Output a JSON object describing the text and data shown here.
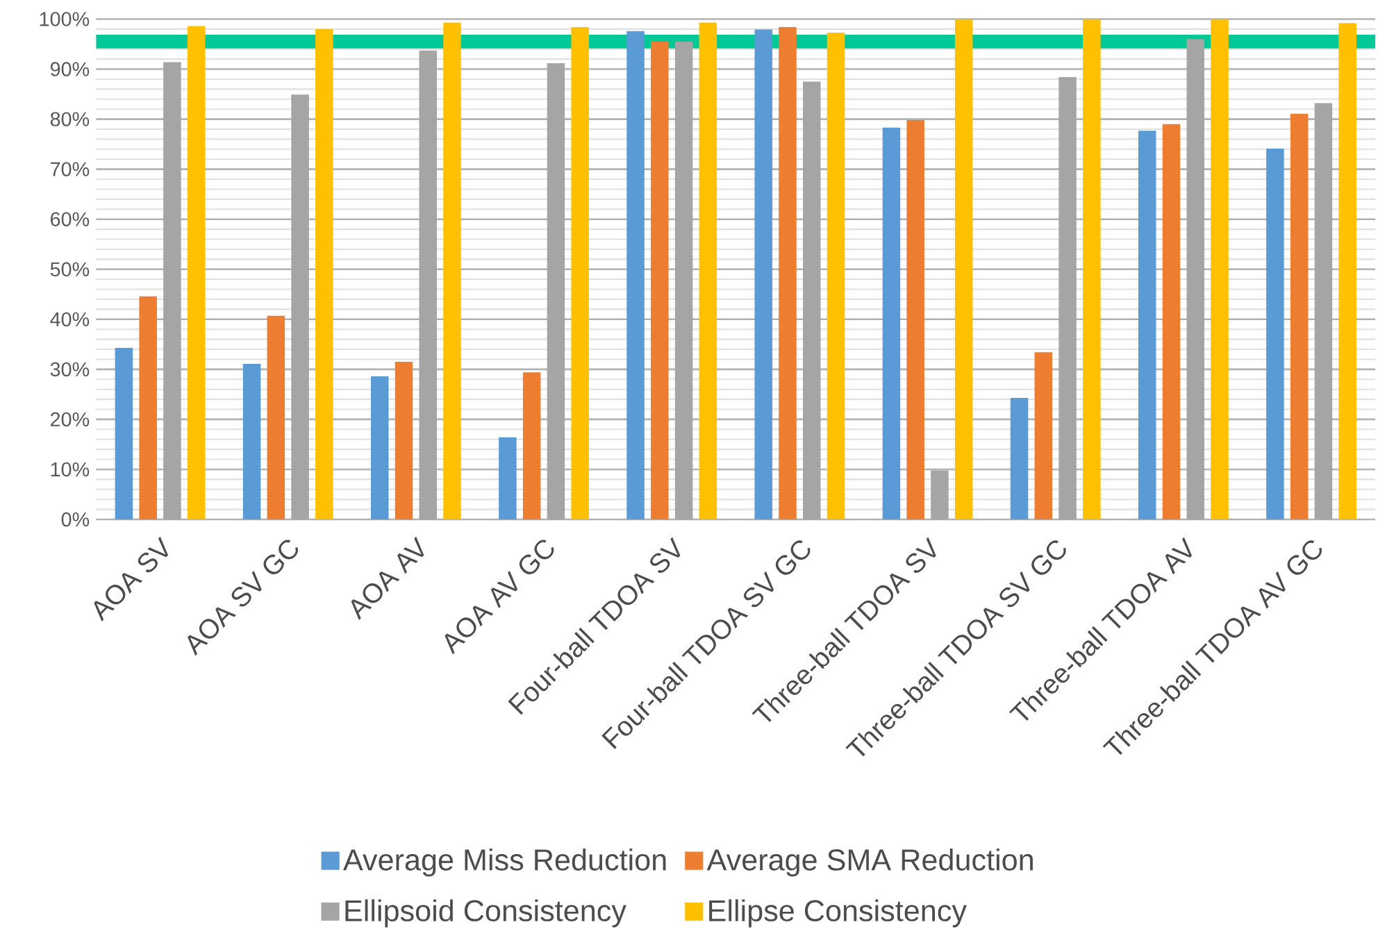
{
  "chart_data": {
    "type": "bar",
    "categories": [
      "AOA SV",
      "AOA SV GC",
      "AOA AV",
      "AOA AV GC",
      "Four-ball TDOA SV",
      "Four-ball TDOA SV GC",
      "Three-ball TDOA SV",
      "Three-ball TDOA SV GC",
      "Three-ball TDOA AV",
      "Three-ball TDOA AV GC"
    ],
    "series": [
      {
        "name": "Average Miss Reduction",
        "color": "#5b9bd5",
        "values": [
          34.3,
          31.1,
          28.6,
          16.4,
          97.6,
          97.9,
          78.3,
          24.3,
          77.7,
          74.1
        ]
      },
      {
        "name": "Average SMA Reduction",
        "color": "#ed7d31",
        "values": [
          44.6,
          40.7,
          31.5,
          29.4,
          95.5,
          98.4,
          79.8,
          33.4,
          79.0,
          81.1
        ]
      },
      {
        "name": "Ellipsoid Consistency",
        "color": "#a5a5a5",
        "values": [
          91.4,
          84.9,
          93.7,
          91.2,
          95.5,
          87.5,
          9.8,
          88.4,
          96.0,
          83.2
        ]
      },
      {
        "name": "Ellipse Consistency",
        "color": "#ffc000",
        "values": [
          98.6,
          98.0,
          99.3,
          98.4,
          99.3,
          97.3,
          99.9,
          99.9,
          99.9,
          99.2
        ]
      }
    ],
    "ylim": [
      0,
      100
    ],
    "yticks": [
      {
        "value": 0,
        "label": "0%"
      },
      {
        "value": 10,
        "label": "10%"
      },
      {
        "value": 20,
        "label": "20%"
      },
      {
        "value": 30,
        "label": "30%"
      },
      {
        "value": 40,
        "label": "40%"
      },
      {
        "value": 50,
        "label": "50%"
      },
      {
        "value": 60,
        "label": "60%"
      },
      {
        "value": 70,
        "label": "70%"
      },
      {
        "value": 80,
        "label": "80%"
      },
      {
        "value": 90,
        "label": "90%"
      },
      {
        "value": 100,
        "label": "100%"
      }
    ],
    "grid": "y",
    "legend": "bottom",
    "ref_lines": [
      {
        "axis": "y",
        "value": 95.5,
        "color": "#00c896"
      }
    ]
  }
}
